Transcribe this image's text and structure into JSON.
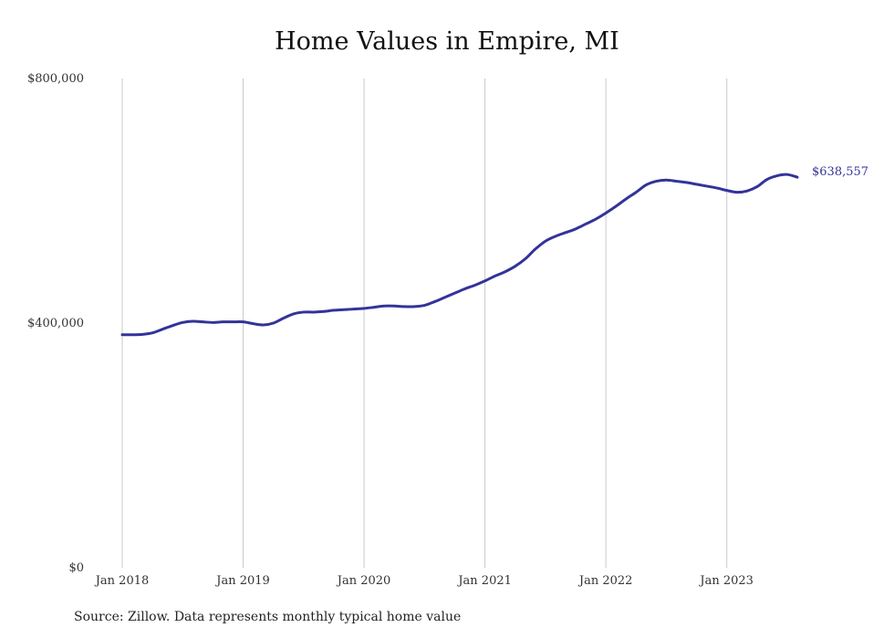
{
  "chart_data": {
    "type": "line",
    "title": "Home Values in Empire, MI",
    "xlabel": "",
    "ylabel": "",
    "ylim": [
      0,
      800000
    ],
    "xlim": [
      "2018-01",
      "2023-08"
    ],
    "y_ticks": [
      {
        "value": 0,
        "label": "$0"
      },
      {
        "value": 400000,
        "label": "$400,000"
      },
      {
        "value": 800000,
        "label": "$800,000"
      }
    ],
    "x_ticks": [
      {
        "value": "2018-01",
        "label": "Jan 2018"
      },
      {
        "value": "2019-01",
        "label": "Jan 2019"
      },
      {
        "value": "2020-01",
        "label": "Jan 2020"
      },
      {
        "value": "2021-01",
        "label": "Jan 2021"
      },
      {
        "value": "2022-01",
        "label": "Jan 2022"
      },
      {
        "value": "2023-01",
        "label": "Jan 2023"
      }
    ],
    "grid": "vertical",
    "series": [
      {
        "color": "#33339a",
        "x": [
          "2018-01",
          "2018-02",
          "2018-03",
          "2018-04",
          "2018-05",
          "2018-06",
          "2018-07",
          "2018-08",
          "2018-09",
          "2018-10",
          "2018-11",
          "2018-12",
          "2019-01",
          "2019-02",
          "2019-03",
          "2019-04",
          "2019-05",
          "2019-06",
          "2019-07",
          "2019-08",
          "2019-09",
          "2019-10",
          "2019-11",
          "2019-12",
          "2020-01",
          "2020-02",
          "2020-03",
          "2020-04",
          "2020-05",
          "2020-06",
          "2020-07",
          "2020-08",
          "2020-09",
          "2020-10",
          "2020-11",
          "2020-12",
          "2021-01",
          "2021-02",
          "2021-03",
          "2021-04",
          "2021-05",
          "2021-06",
          "2021-07",
          "2021-08",
          "2021-09",
          "2021-10",
          "2021-11",
          "2021-12",
          "2022-01",
          "2022-02",
          "2022-03",
          "2022-04",
          "2022-05",
          "2022-06",
          "2022-07",
          "2022-08",
          "2022-09",
          "2022-10",
          "2022-11",
          "2022-12",
          "2023-01",
          "2023-02",
          "2023-03",
          "2023-04",
          "2023-05",
          "2023-06",
          "2023-07",
          "2023-08"
        ],
        "values": [
          381000,
          381000,
          381500,
          384000,
          390000,
          396000,
          401000,
          403000,
          402000,
          401000,
          402000,
          402000,
          402000,
          399000,
          397000,
          400000,
          408000,
          415000,
          418000,
          418000,
          419000,
          421000,
          422000,
          423000,
          424000,
          426000,
          428000,
          428000,
          427000,
          427000,
          429000,
          435000,
          442000,
          449000,
          456000,
          462000,
          469000,
          477000,
          484000,
          493000,
          505000,
          521000,
          534000,
          542000,
          548000,
          554000,
          562000,
          570000,
          580000,
          591000,
          603000,
          614000,
          626000,
          632000,
          634000,
          632000,
          630000,
          627000,
          624000,
          621000,
          617000,
          614000,
          616000,
          623000,
          635000,
          641000,
          643000,
          638557
        ],
        "end_label": "$638,557"
      }
    ]
  },
  "source_text": "Source: Zillow. Data represents monthly typical home value"
}
